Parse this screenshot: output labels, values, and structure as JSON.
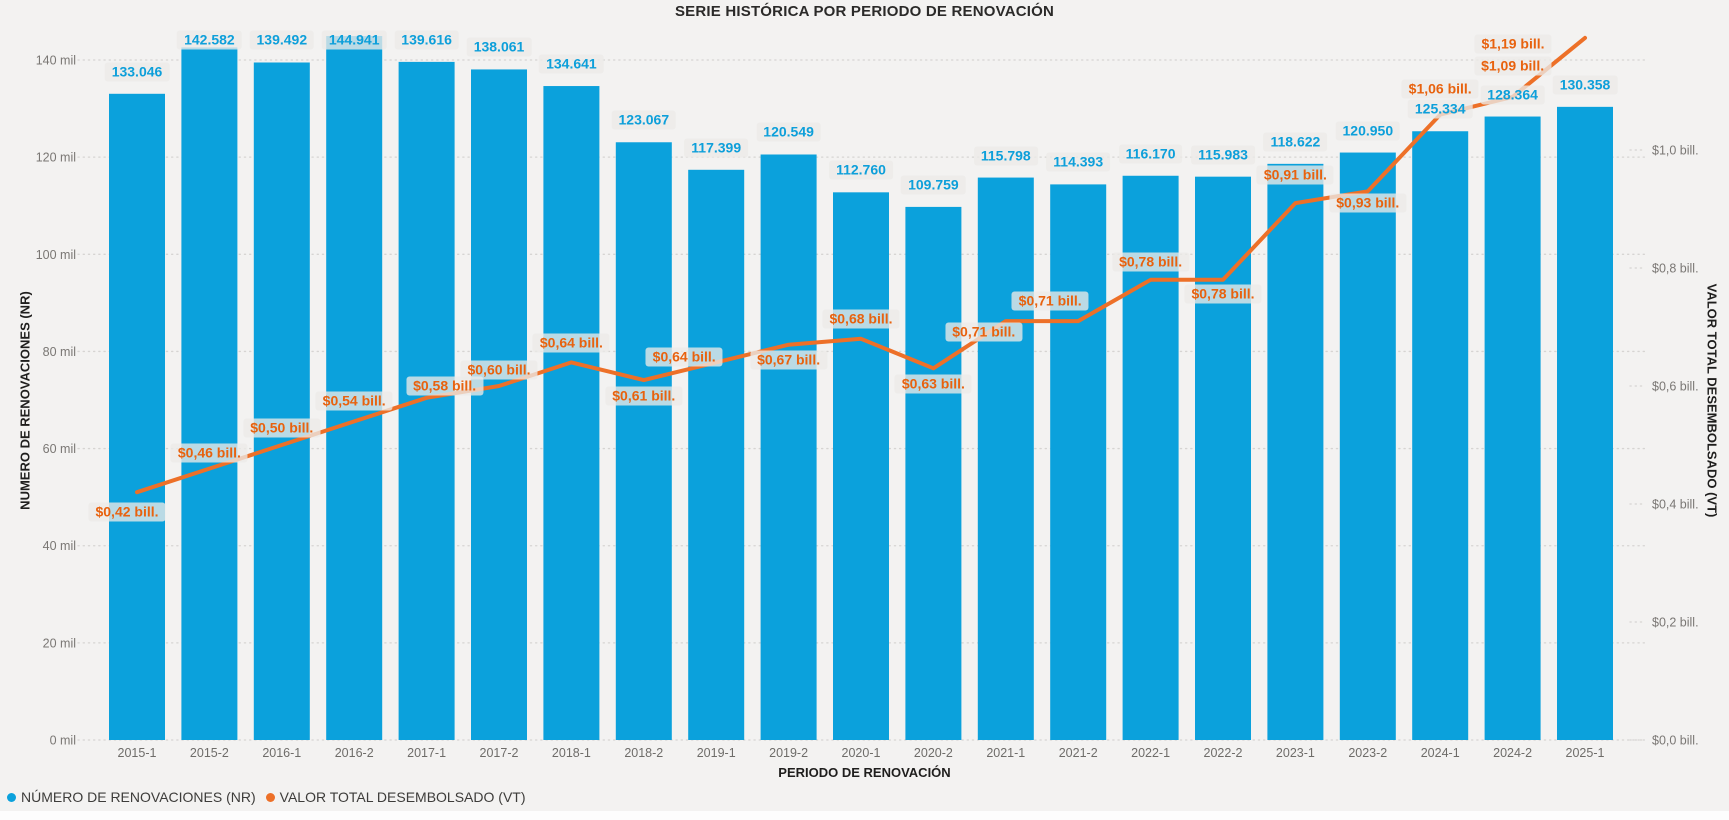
{
  "title": "SERIE HISTÓRICA POR PERIODO DE RENOVACIÓN",
  "colors": {
    "bar": "#0BA1DC",
    "bar_label_text": "#0D9FDA",
    "line": "#ED7028",
    "line_label_text": "#E8620E",
    "background": "#F3F2F1",
    "gridline": "#D6D4D2",
    "tick_text": "#7A7774"
  },
  "chart_data": {
    "type": "combo-bar-line",
    "title": "SERIE HISTÓRICA POR PERIODO DE RENOVACIÓN",
    "xlabel": "PERIODO DE RENOVACIÓN",
    "categories": [
      "2015-1",
      "2015-2",
      "2016-1",
      "2016-2",
      "2017-1",
      "2017-2",
      "2018-1",
      "2018-2",
      "2019-1",
      "2019-2",
      "2020-1",
      "2020-2",
      "2021-1",
      "2021-2",
      "2022-1",
      "2022-2",
      "2023-1",
      "2023-2",
      "2024-1",
      "2024-2",
      "2025-1"
    ],
    "series": [
      {
        "name": "NÚMERO DE RENOVACIONES (NR)",
        "type": "bar",
        "axis": "left",
        "values": [
          133046,
          142582,
          139492,
          144941,
          139616,
          138061,
          134641,
          123067,
          117399,
          120549,
          112760,
          109759,
          115798,
          114393,
          116170,
          115983,
          118622,
          120950,
          125334,
          128364,
          130358
        ],
        "labels": [
          "133.046",
          "142.582",
          "139.492",
          "144.941",
          "139.616",
          "138.061",
          "134.641",
          "123.067",
          "117.399",
          "120.549",
          "112.760",
          "109.759",
          "115.798",
          "114.393",
          "116.170",
          "115.983",
          "118.622",
          "120.950",
          "125.334",
          "128.364",
          "130.358"
        ]
      },
      {
        "name": "VALOR TOTAL DESEMBOLSADO (VT)",
        "type": "line",
        "axis": "right",
        "values": [
          0.42,
          0.46,
          0.5,
          0.54,
          0.58,
          0.6,
          0.64,
          0.61,
          0.64,
          0.67,
          0.68,
          0.63,
          0.71,
          0.71,
          0.78,
          0.78,
          0.91,
          0.93,
          1.06,
          1.09,
          1.19
        ],
        "labels": [
          "$0,42 bill.",
          "$0,46 bill.",
          "$0,50 bill.",
          "$0,54 bill.",
          "$0,58 bill.",
          "$0,60 bill.",
          "$0,64 bill.",
          "$0,61 bill.",
          "$0,64 bill.",
          "$0,67 bill.",
          "$0,68 bill.",
          "$0,63 bill.",
          "$0,71 bill.",
          "$0,71 bill.",
          "$0,78 bill.",
          "$0,78 bill.",
          "$0,91 bill.",
          "$0,93 bill.",
          "$1,06 bill.",
          "$1,09 bill.",
          "$1,19 bill."
        ]
      }
    ],
    "left_axis": {
      "title": "NUMERO DE RENOVACIONES (NR)",
      "tick_values": [
        0,
        20000,
        40000,
        60000,
        80000,
        100000,
        120000,
        140000
      ],
      "tick_labels": [
        "0 mil",
        "20 mil",
        "40 mil",
        "60 mil",
        "80 mil",
        "100 mil",
        "120 mil",
        "140 mil"
      ]
    },
    "right_axis": {
      "title": "VALOR TOTAL DESEMBOLSADO (VT)",
      "tick_values": [
        0,
        0.2,
        0.4,
        0.6,
        0.8,
        1.0
      ],
      "tick_labels": [
        "$0,0 bill.",
        "$0,2 bill.",
        "$0,4 bill.",
        "$0,6 bill.",
        "$0,8 bill.",
        "$1,0 bill."
      ]
    },
    "grid": true,
    "legend_position": "bottom-left"
  },
  "legend": {
    "items": [
      {
        "label": "NÚMERO DE RENOVACIONES (NR)",
        "color": "#0BA1DC"
      },
      {
        "label": "VALOR TOTAL DESEMBOLSADO (VT)",
        "color": "#ED7028"
      }
    ]
  }
}
